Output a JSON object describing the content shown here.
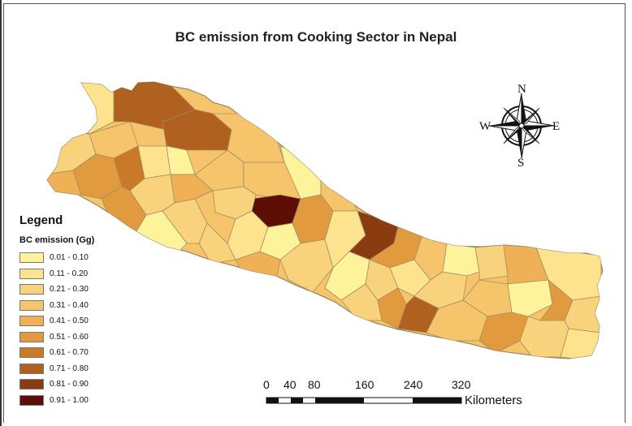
{
  "title": "BC emission from Cooking Sector in Nepal",
  "legend": {
    "title": "Legend",
    "subtitle": "BC emission (Gg)",
    "classes": [
      {
        "label": "0.01 - 0.10",
        "color": "#fdf39a"
      },
      {
        "label": "0.11 - 0.20",
        "color": "#fde38e"
      },
      {
        "label": "0.21 - 0.30",
        "color": "#f9d27c"
      },
      {
        "label": "0.31 - 0.40",
        "color": "#f6c46a"
      },
      {
        "label": "0.41 - 0.50",
        "color": "#f0b055"
      },
      {
        "label": "0.51 - 0.60",
        "color": "#e29a3e"
      },
      {
        "label": "0.61 - 0.70",
        "color": "#c97928"
      },
      {
        "label": "0.71 - 0.80",
        "color": "#b0611f"
      },
      {
        "label": "0.81 - 0.90",
        "color": "#8a3b10"
      },
      {
        "label": "0.91 - 1.00",
        "color": "#5e0f05"
      }
    ]
  },
  "compass": {
    "north": "N",
    "south": "S",
    "east": "E",
    "west": "W"
  },
  "scale_bar": {
    "ticks": [
      "0",
      "40",
      "80",
      "160",
      "240",
      "320"
    ],
    "unit": "Kilometers"
  },
  "colors": {
    "border": "#8a7a5a",
    "text": "#222222"
  }
}
